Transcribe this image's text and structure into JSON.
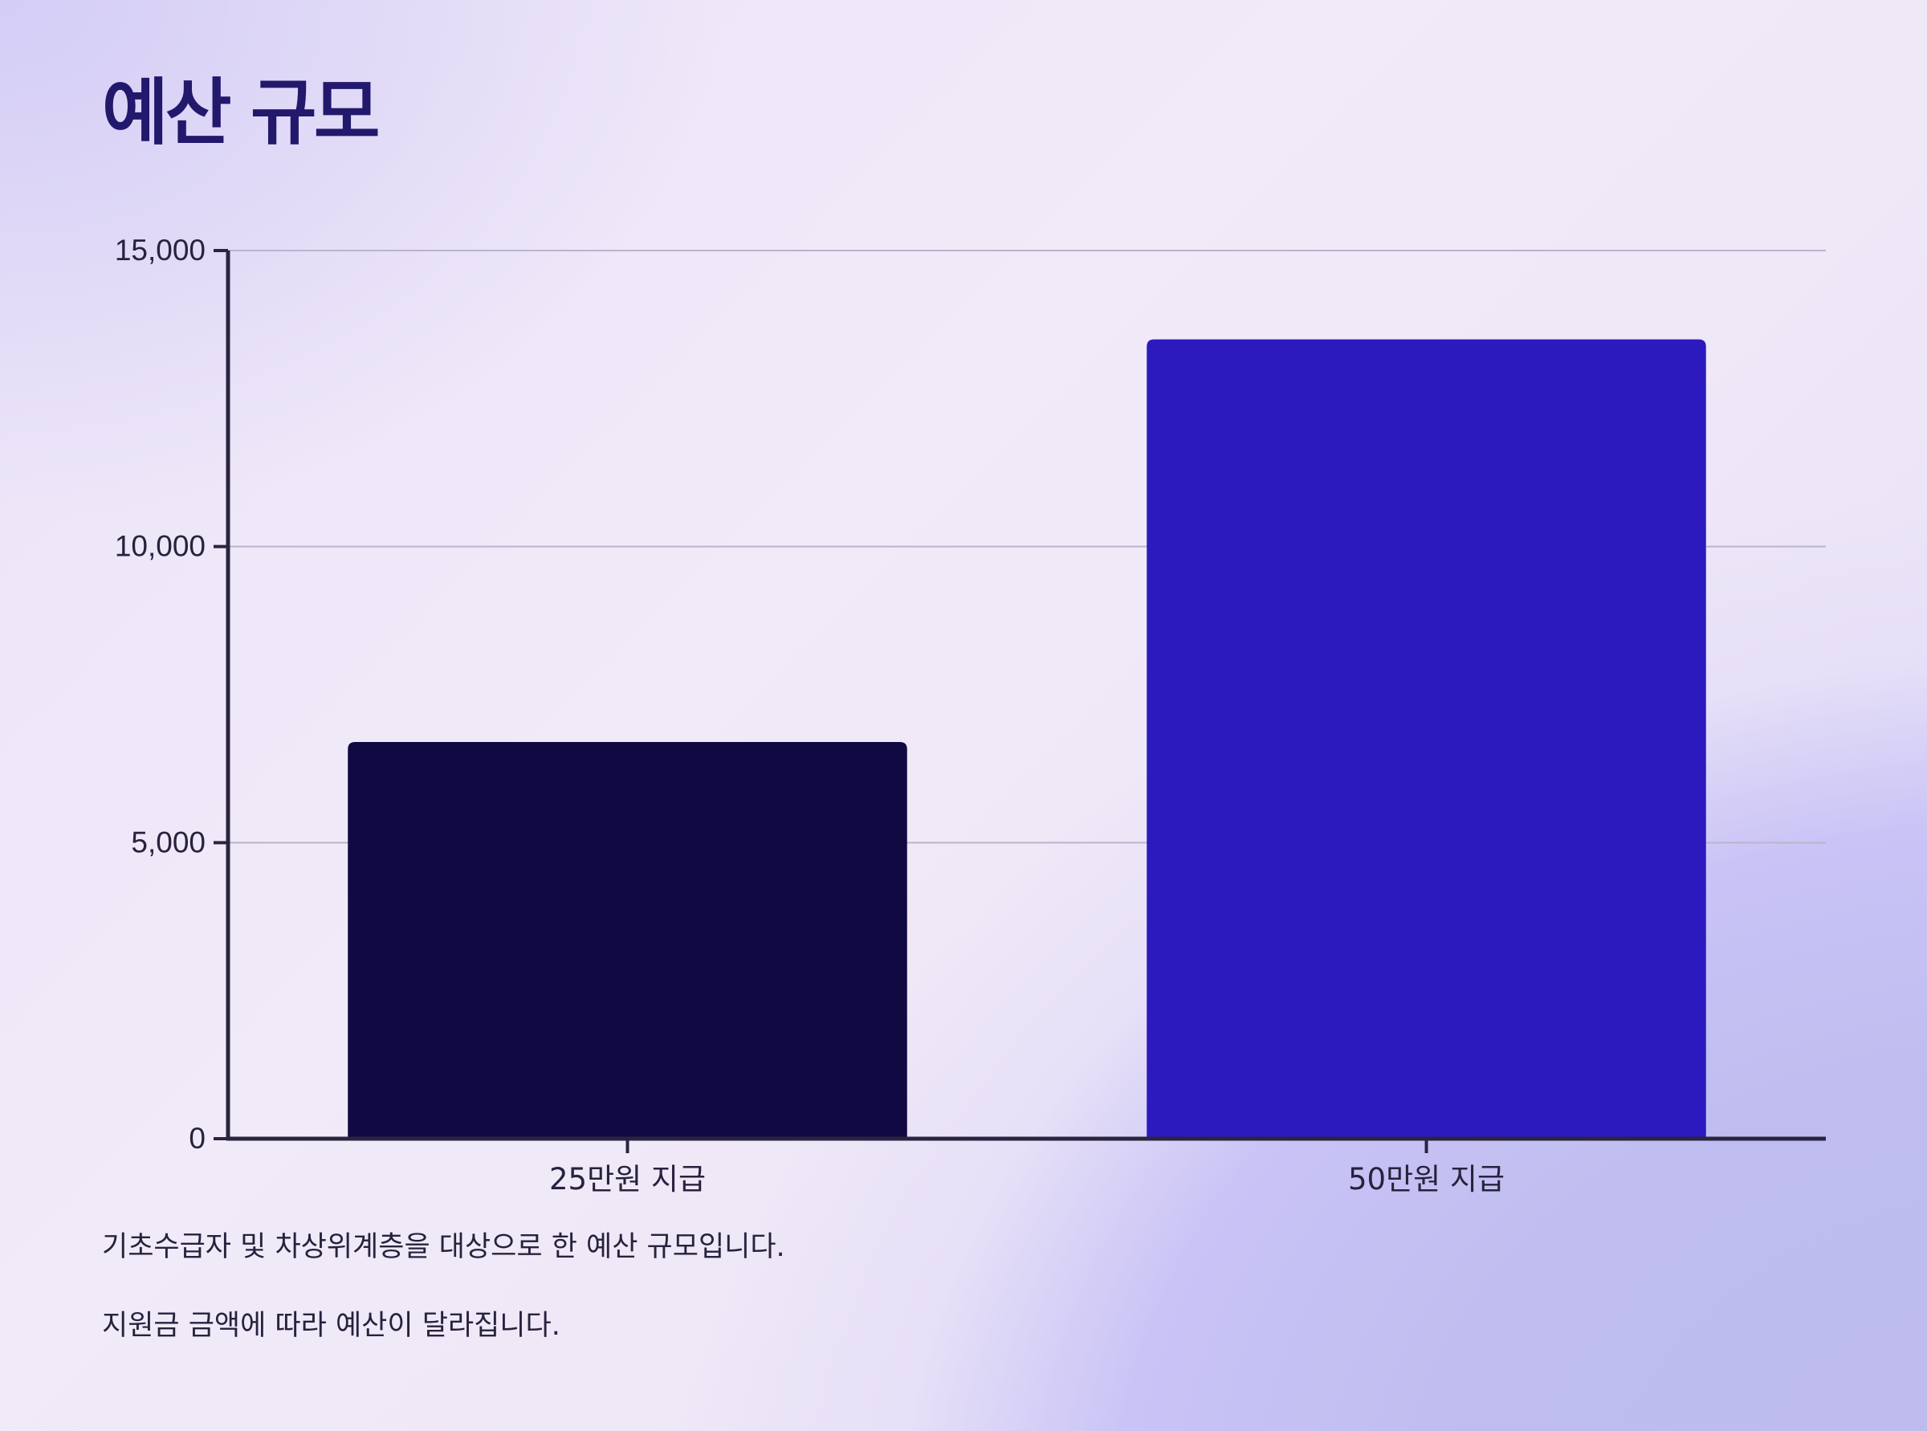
{
  "chart_data": {
    "type": "bar",
    "title": "예산 규모",
    "xlabel": "",
    "ylabel": "",
    "categories": [
      "25만원 지급",
      "50만원 지급"
    ],
    "values": [
      6700,
      13500
    ],
    "ylim": [
      0,
      15000
    ],
    "yticks": [
      0,
      5000,
      10000,
      15000
    ],
    "ytick_labels": [
      "0",
      "5,000",
      "10,000",
      "15,000"
    ],
    "bar_colors": [
      "#110a42",
      "#2c1abe"
    ],
    "grid": true,
    "legend": "none"
  },
  "notes": [
    "기초수급자 및 차상위계층을 대상으로 한 예산 규모입니다.",
    "지원금 금액에 따라 예산이 달라집니다."
  ],
  "colors": {
    "title": "#22186c",
    "axis": "#2a2440",
    "grid": "#bbb4cf",
    "text": "#27223d"
  }
}
